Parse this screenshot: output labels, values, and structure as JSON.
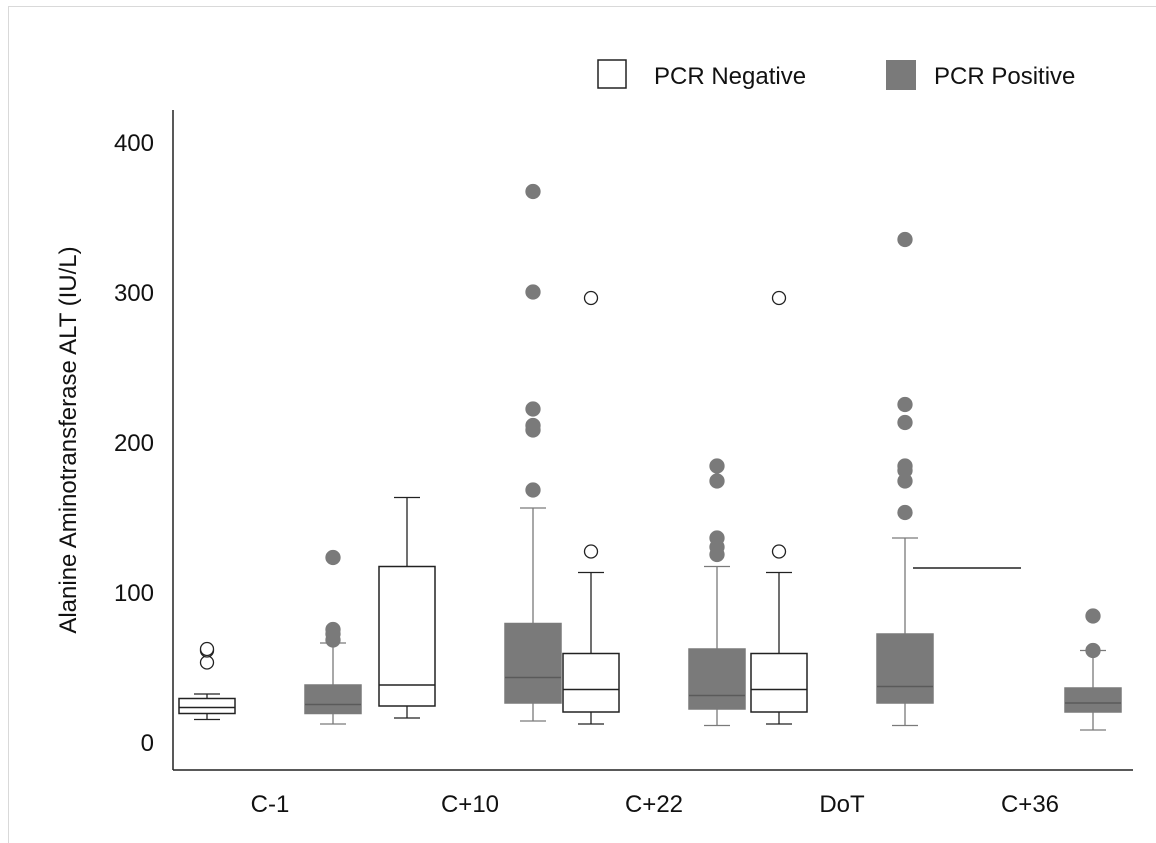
{
  "colors": {
    "negative_fill": "#ffffff",
    "negative_stroke": "#222222",
    "positive_fill": "#7a7a7a",
    "positive_stroke": "#7a7a7a",
    "positive_median": "#5a5a5a",
    "axis": "#222222"
  },
  "chart_data": {
    "type": "box",
    "title": "",
    "xlabel": "",
    "ylabel": "Alanine Aminotransferase ALT (IU/L)",
    "ylim": [
      -20,
      420
    ],
    "yticks": [
      0,
      100,
      200,
      300,
      400
    ],
    "categories": [
      "C-1",
      "C+10",
      "C+22",
      "DoT",
      "C+36"
    ],
    "legend": {
      "position": "top-right"
    },
    "series": [
      {
        "name": "PCR Negative",
        "boxes": [
          {
            "whisker_low": 15,
            "q1": 19,
            "median": 23,
            "q3": 29,
            "whisker_high": 32,
            "outliers": [
              53,
              61,
              62
            ]
          },
          {
            "whisker_low": 16,
            "q1": 24,
            "median": 38,
            "q3": 117,
            "whisker_high": 163,
            "outliers": []
          },
          {
            "whisker_low": 12,
            "q1": 20,
            "median": 35,
            "q3": 59,
            "whisker_high": 113,
            "outliers": [
              127,
              296
            ]
          },
          {
            "whisker_low": 12,
            "q1": 20,
            "median": 35,
            "q3": 59,
            "whisker_high": 113,
            "outliers": [
              127,
              296
            ]
          },
          {
            "whisker_low": 116,
            "q1": 116,
            "median": 116,
            "q3": 116,
            "whisker_high": 116,
            "outliers": []
          }
        ]
      },
      {
        "name": "PCR Positive",
        "boxes": [
          {
            "whisker_low": 12,
            "q1": 19,
            "median": 25,
            "q3": 38,
            "whisker_high": 66,
            "outliers": [
              68,
              72,
              75,
              123
            ]
          },
          {
            "whisker_low": 14,
            "q1": 26,
            "median": 43,
            "q3": 79,
            "whisker_high": 156,
            "outliers": [
              168,
              208,
              211,
              222,
              300,
              367
            ]
          },
          {
            "whisker_low": 11,
            "q1": 22,
            "median": 31,
            "q3": 62,
            "whisker_high": 117,
            "outliers": [
              125,
              130,
              136,
              174,
              184
            ]
          },
          {
            "whisker_low": 11,
            "q1": 26,
            "median": 37,
            "q3": 72,
            "whisker_high": 136,
            "outliers": [
              153,
              174,
              181,
              184,
              213,
              225,
              335
            ]
          },
          {
            "whisker_low": 8,
            "q1": 20,
            "median": 26,
            "q3": 36,
            "whisker_high": 61,
            "outliers": [
              61,
              84
            ]
          }
        ]
      }
    ]
  }
}
